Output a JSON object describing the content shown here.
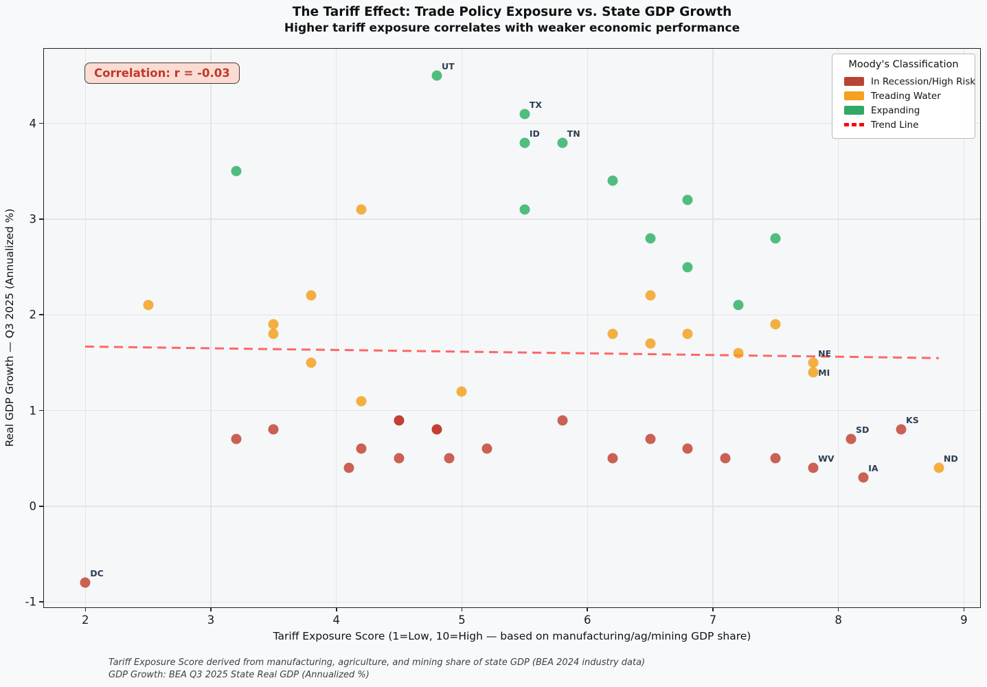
{
  "header": {
    "title": "The Tariff Effect: Trade Policy Exposure vs. State GDP Growth",
    "subtitle": "Higher tariff exposure correlates with weaker economic performance"
  },
  "annotation": {
    "correlation_text": "Correlation: r = -0.03"
  },
  "legend": {
    "title": "Moody's Classification",
    "entries": [
      {
        "label": "In Recession/High Risk",
        "color": "#b6392b",
        "swatch": "patch"
      },
      {
        "label": "Treading Water",
        "color": "#f39c12",
        "swatch": "patch"
      },
      {
        "label": "Expanding",
        "color": "#27a35e",
        "swatch": "patch"
      },
      {
        "label": "Trend Line",
        "color": "#ff0000",
        "swatch": "dashed-line"
      }
    ]
  },
  "footnotes": {
    "line1": "Tariff Exposure Score derived from manufacturing, agriculture, and mining share of state GDP (BEA 2024 industry data)",
    "line2": "GDP Growth: BEA Q3 2025 State Real GDP (Annualized %)"
  },
  "chart_data": {
    "type": "scatter",
    "title": "The Tariff Effect: Trade Policy Exposure vs. State GDP Growth",
    "subtitle": "Higher tariff exposure correlates with weaker economic performance",
    "xlabel": "Tariff Exposure Score (1=Low, 10=High — based on manufacturing/ag/mining GDP share)",
    "ylabel": "Real GDP Growth — Q3 2025 (Annualized %)",
    "xlim": [
      1.67,
      9.14
    ],
    "ylim": [
      -1.07,
      4.78
    ],
    "xticks": [
      2,
      3,
      4,
      5,
      6,
      7,
      8,
      9
    ],
    "yticks": [
      -1,
      0,
      1,
      2,
      3,
      4
    ],
    "grid": true,
    "legend_position": "upper right",
    "correlation_r": -0.03,
    "series": [
      {
        "name": "In Recession/High Risk",
        "color": "#c0392b",
        "points": [
          {
            "x": 2.0,
            "y": -0.8,
            "label": "DC"
          },
          {
            "x": 3.2,
            "y": 0.7
          },
          {
            "x": 3.5,
            "y": 0.8
          },
          {
            "x": 4.1,
            "y": 0.4
          },
          {
            "x": 4.2,
            "y": 0.6
          },
          {
            "x": 4.5,
            "y": 0.9,
            "overlap": true
          },
          {
            "x": 4.5,
            "y": 0.5
          },
          {
            "x": 4.8,
            "y": 0.8,
            "overlap": true
          },
          {
            "x": 4.9,
            "y": 0.5
          },
          {
            "x": 5.2,
            "y": 0.6
          },
          {
            "x": 5.8,
            "y": 0.9
          },
          {
            "x": 6.2,
            "y": 0.5
          },
          {
            "x": 6.5,
            "y": 0.7
          },
          {
            "x": 6.8,
            "y": 0.6
          },
          {
            "x": 7.1,
            "y": 0.5
          },
          {
            "x": 7.5,
            "y": 0.5
          },
          {
            "x": 7.8,
            "y": 0.4,
            "label": "WV"
          },
          {
            "x": 8.1,
            "y": 0.7,
            "label": "SD"
          },
          {
            "x": 8.2,
            "y": 0.3,
            "label": "IA"
          },
          {
            "x": 8.5,
            "y": 0.8,
            "label": "KS"
          }
        ]
      },
      {
        "name": "Treading Water",
        "color": "#f39c12",
        "points": [
          {
            "x": 2.5,
            "y": 2.1
          },
          {
            "x": 3.5,
            "y": 1.9
          },
          {
            "x": 3.5,
            "y": 1.8
          },
          {
            "x": 3.8,
            "y": 2.2
          },
          {
            "x": 3.8,
            "y": 1.5
          },
          {
            "x": 4.2,
            "y": 3.1
          },
          {
            "x": 4.2,
            "y": 1.1
          },
          {
            "x": 5.0,
            "y": 1.2
          },
          {
            "x": 6.2,
            "y": 1.8
          },
          {
            "x": 6.5,
            "y": 2.2
          },
          {
            "x": 6.5,
            "y": 1.7
          },
          {
            "x": 6.8,
            "y": 1.8
          },
          {
            "x": 7.2,
            "y": 1.6
          },
          {
            "x": 7.5,
            "y": 1.9
          },
          {
            "x": 7.8,
            "y": 1.5,
            "label": "NE"
          },
          {
            "x": 7.8,
            "y": 1.4,
            "label": "MI",
            "label_dy": -7
          },
          {
            "x": 8.8,
            "y": 0.4,
            "label": "ND"
          }
        ]
      },
      {
        "name": "Expanding",
        "color": "#27ae60",
        "points": [
          {
            "x": 3.2,
            "y": 3.5
          },
          {
            "x": 4.8,
            "y": 4.5,
            "label": "UT"
          },
          {
            "x": 5.5,
            "y": 4.1,
            "label": "TX"
          },
          {
            "x": 5.5,
            "y": 3.8,
            "label": "ID"
          },
          {
            "x": 5.8,
            "y": 3.8,
            "label": "TN"
          },
          {
            "x": 5.5,
            "y": 3.1
          },
          {
            "x": 6.2,
            "y": 3.4
          },
          {
            "x": 6.5,
            "y": 2.8
          },
          {
            "x": 6.8,
            "y": 3.2
          },
          {
            "x": 6.8,
            "y": 2.5
          },
          {
            "x": 7.2,
            "y": 2.1
          },
          {
            "x": 7.5,
            "y": 2.8
          }
        ]
      }
    ],
    "trend_line": {
      "name": "Trend Line",
      "color": "#ff4d4d",
      "style": "dashed",
      "x": [
        2.0,
        8.8
      ],
      "y": [
        1.67,
        1.55
      ]
    }
  }
}
